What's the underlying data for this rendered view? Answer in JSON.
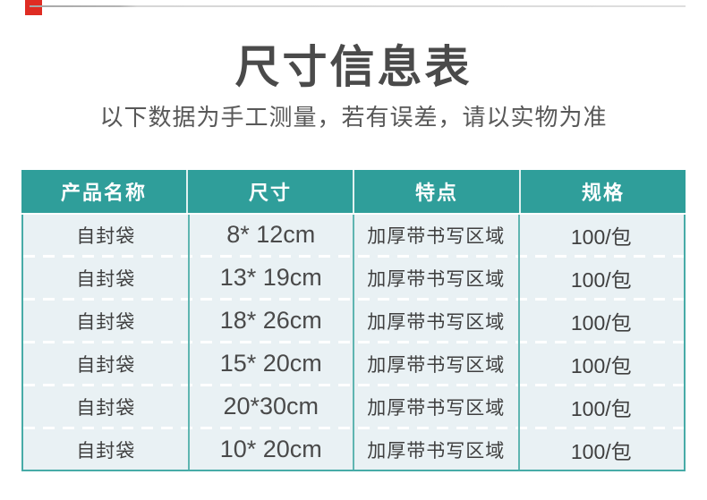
{
  "page": {
    "title": "尺寸信息表",
    "subtitle": "以下数据为手工测量，若有误差，请以实物为准"
  },
  "table": {
    "headers": [
      "产品名称",
      "尺寸",
      "特点",
      "规格"
    ],
    "rows": [
      [
        "自封袋",
        "8* 12cm",
        "加厚带书写区域",
        "100/包"
      ],
      [
        "自封袋",
        "13* 19cm",
        "加厚带书写区域",
        "100/包"
      ],
      [
        "自封袋",
        "18* 26cm",
        "加厚带书写区域",
        "100/包"
      ],
      [
        "自封袋",
        "15* 20cm",
        "加厚带书写区域",
        "100/包"
      ],
      [
        "自封袋",
        "20*30cm",
        "加厚带书写区域",
        "100/包"
      ],
      [
        "自封袋",
        "10* 20cm",
        "加厚带书写区域",
        "100/包"
      ]
    ]
  },
  "colors": {
    "accent_teal": "#2F9E9A",
    "divider_teal": "#5FB5B1",
    "border_teal": "#47ABA7",
    "row_bg": "#E9F1F4",
    "header_text": "#FFFFFF",
    "title_text": "#4A4A4A",
    "body_text": "#3F3F3F",
    "red_accent": "#DF2C23"
  }
}
